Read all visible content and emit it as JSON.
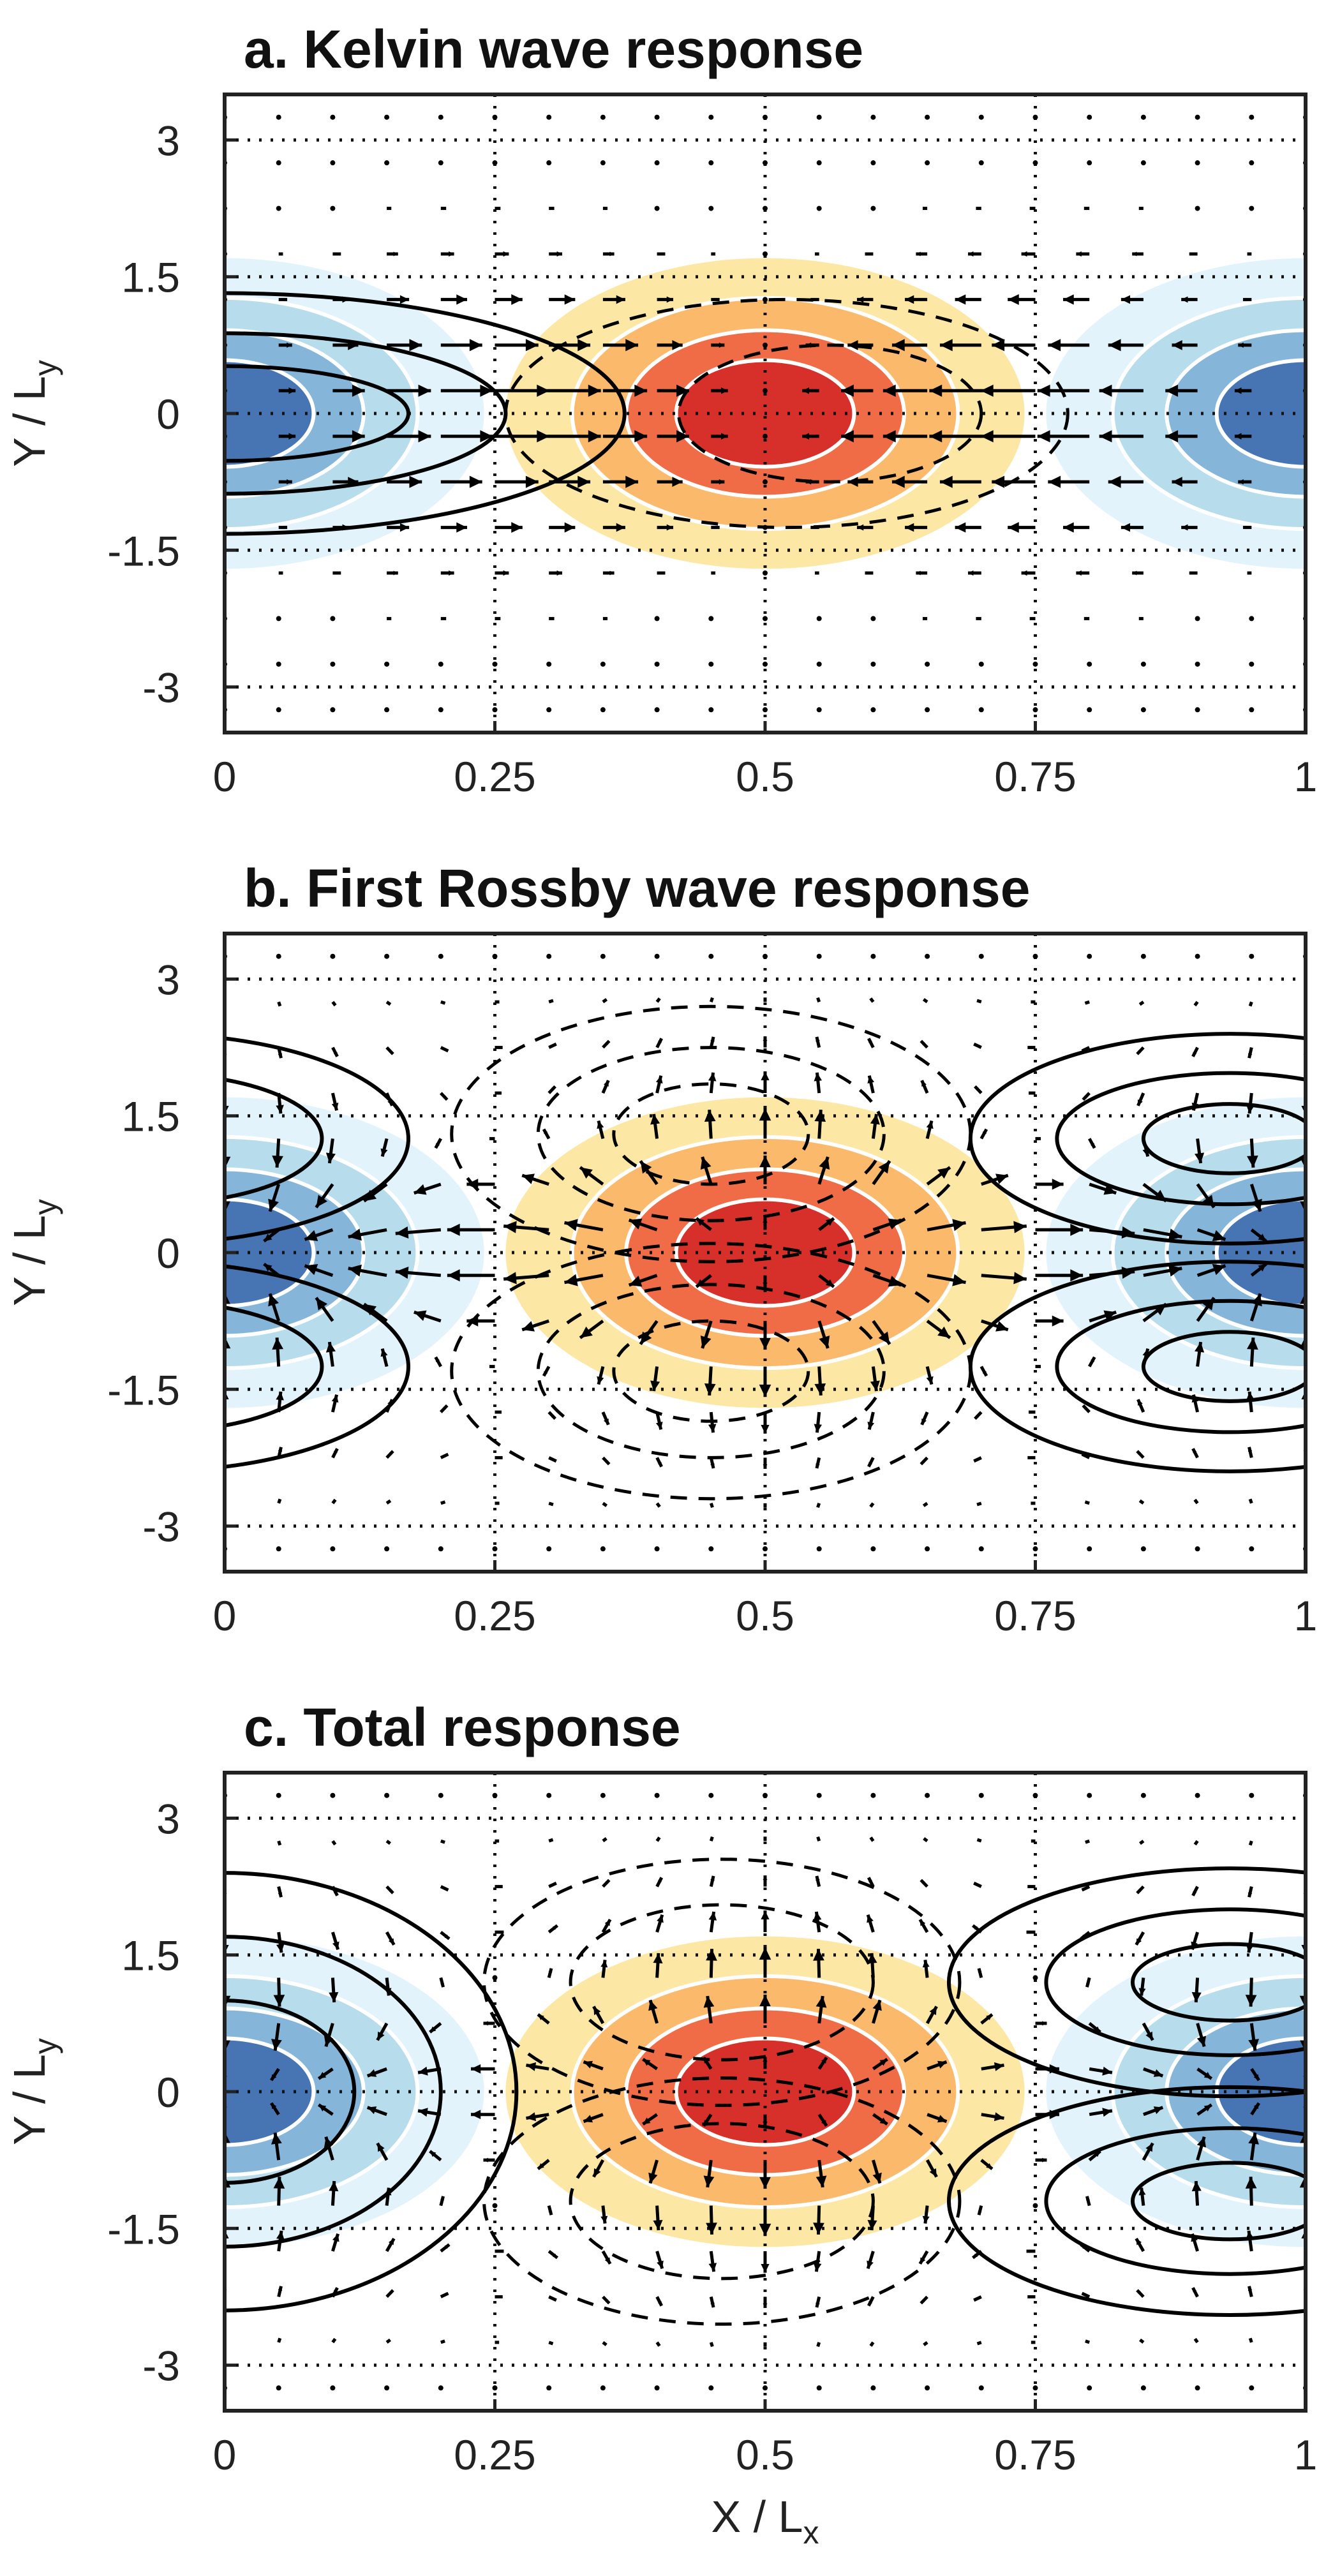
{
  "chart_data": [
    {
      "type": "contour",
      "panel": "a",
      "title": "a. Kelvin wave response",
      "xlabel": "",
      "ylabel": "Y / L",
      "ylabel_sub": "y",
      "xlim": [
        0,
        1
      ],
      "ylim": [
        -3.5,
        3.5
      ],
      "xticks": [
        0,
        0.25,
        0.5,
        0.75,
        1
      ],
      "xtick_labels": [
        "0",
        "0.25",
        "0.5",
        "0.75",
        "1"
      ],
      "yticks": [
        3,
        1.5,
        0,
        -1.5,
        -3
      ],
      "ytick_labels": [
        "3",
        "1.5",
        "0",
        "-1.5",
        "-3"
      ],
      "grid": "dotted",
      "heating": {
        "x_center": 0.5,
        "x_half_width": 0.24,
        "y_scale": 1.2
      },
      "wind_scale": 0.052,
      "solid_contours": [
        {
          "cx": 0.0,
          "cy": 0.0,
          "rx": 0.37,
          "ry": 1.32
        },
        {
          "cx": 0.0,
          "cy": 0.0,
          "rx": 0.26,
          "ry": 0.88
        },
        {
          "cx": 0.0,
          "cy": 0.0,
          "rx": 0.17,
          "ry": 0.52
        }
      ],
      "dashed_contours": [
        {
          "cx": 0.52,
          "cy": 0.0,
          "rx": 0.26,
          "ry": 1.25
        },
        {
          "cx": 0.56,
          "cy": 0.0,
          "rx": 0.14,
          "ry": 0.75
        }
      ]
    },
    {
      "type": "contour",
      "panel": "b",
      "title": "b. First Rossby wave response",
      "xlabel": "",
      "ylabel": "Y / L",
      "ylabel_sub": "y",
      "xlim": [
        0,
        1
      ],
      "ylim": [
        -3.5,
        3.5
      ],
      "xticks": [
        0,
        0.25,
        0.5,
        0.75,
        1
      ],
      "xtick_labels": [
        "0",
        "0.25",
        "0.5",
        "0.75",
        "1"
      ],
      "yticks": [
        3,
        1.5,
        0,
        -1.5,
        -3
      ],
      "ytick_labels": [
        "3",
        "1.5",
        "0",
        "-1.5",
        "-3"
      ],
      "grid": "dotted",
      "heating": {
        "x_center": 0.5,
        "x_half_width": 0.24,
        "y_scale": 1.2
      },
      "wind_scale": 0.052,
      "solid_contours": [
        {
          "cx": 0.93,
          "cy": 1.25,
          "rx": 0.24,
          "ry": 1.15
        },
        {
          "cx": 0.93,
          "cy": 1.25,
          "rx": 0.16,
          "ry": 0.72
        },
        {
          "cx": 0.93,
          "cy": 1.25,
          "rx": 0.08,
          "ry": 0.38
        },
        {
          "cx": 0.93,
          "cy": -1.25,
          "rx": 0.24,
          "ry": 1.15
        },
        {
          "cx": 0.93,
          "cy": -1.25,
          "rx": 0.16,
          "ry": 0.72
        },
        {
          "cx": 0.93,
          "cy": -1.25,
          "rx": 0.08,
          "ry": 0.38
        },
        {
          "cx": -0.07,
          "cy": 1.25,
          "rx": 0.24,
          "ry": 1.15
        },
        {
          "cx": -0.07,
          "cy": 1.25,
          "rx": 0.16,
          "ry": 0.72
        },
        {
          "cx": -0.07,
          "cy": -1.25,
          "rx": 0.24,
          "ry": 1.15
        },
        {
          "cx": -0.07,
          "cy": -1.25,
          "rx": 0.16,
          "ry": 0.72
        }
      ],
      "dashed_contours": [
        {
          "cx": 0.45,
          "cy": 1.3,
          "rx": 0.24,
          "ry": 1.4
        },
        {
          "cx": 0.45,
          "cy": 1.3,
          "rx": 0.16,
          "ry": 0.95
        },
        {
          "cx": 0.45,
          "cy": 1.3,
          "rx": 0.09,
          "ry": 0.55
        },
        {
          "cx": 0.45,
          "cy": -1.3,
          "rx": 0.24,
          "ry": 1.4
        },
        {
          "cx": 0.45,
          "cy": -1.3,
          "rx": 0.16,
          "ry": 0.95
        },
        {
          "cx": 0.45,
          "cy": -1.3,
          "rx": 0.09,
          "ry": 0.55
        }
      ]
    },
    {
      "type": "contour",
      "panel": "c",
      "title": "c. Total response",
      "xlabel": "X / L",
      "xlabel_sub": "x",
      "ylabel": "Y / L",
      "ylabel_sub": "y",
      "xlim": [
        0,
        1
      ],
      "ylim": [
        -3.5,
        3.5
      ],
      "xticks": [
        0,
        0.25,
        0.5,
        0.75,
        1
      ],
      "xtick_labels": [
        "0",
        "0.25",
        "0.5",
        "0.75",
        "1"
      ],
      "yticks": [
        3,
        1.5,
        0,
        -1.5,
        -3
      ],
      "ytick_labels": [
        "3",
        "1.5",
        "0",
        "-1.5",
        "-3"
      ],
      "grid": "dotted",
      "heating": {
        "x_center": 0.5,
        "x_half_width": 0.24,
        "y_scale": 1.2
      },
      "wind_scale": 0.052,
      "solid_contours": [
        {
          "cx": 0.93,
          "cy": 1.2,
          "rx": 0.26,
          "ry": 1.25
        },
        {
          "cx": 0.93,
          "cy": 1.2,
          "rx": 0.17,
          "ry": 0.8
        },
        {
          "cx": 0.93,
          "cy": 1.2,
          "rx": 0.09,
          "ry": 0.42
        },
        {
          "cx": 0.93,
          "cy": -1.2,
          "rx": 0.26,
          "ry": 1.25
        },
        {
          "cx": 0.93,
          "cy": -1.2,
          "rx": 0.17,
          "ry": 0.8
        },
        {
          "cx": 0.93,
          "cy": -1.2,
          "rx": 0.09,
          "ry": 0.42
        },
        {
          "cx": 0.0,
          "cy": 0.0,
          "rx": 0.27,
          "ry": 2.4
        },
        {
          "cx": 0.0,
          "cy": 0.0,
          "rx": 0.2,
          "ry": 1.7
        },
        {
          "cx": 0.0,
          "cy": 0.0,
          "rx": 0.12,
          "ry": 1.0
        }
      ],
      "dashed_contours": [
        {
          "cx": 0.46,
          "cy": 1.2,
          "rx": 0.22,
          "ry": 1.35
        },
        {
          "cx": 0.46,
          "cy": 1.2,
          "rx": 0.14,
          "ry": 0.85
        },
        {
          "cx": 0.46,
          "cy": -1.2,
          "rx": 0.22,
          "ry": 1.35
        },
        {
          "cx": 0.46,
          "cy": -1.2,
          "rx": 0.14,
          "ry": 0.85
        }
      ]
    }
  ]
}
